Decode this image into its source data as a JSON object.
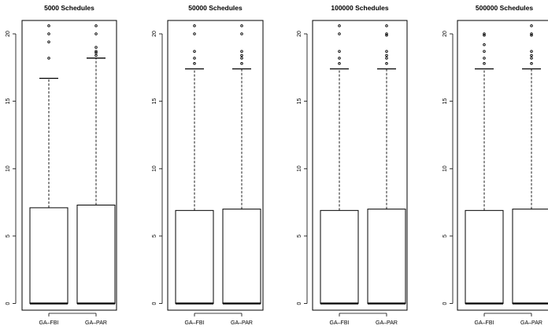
{
  "chart_data": [
    {
      "type": "boxplot",
      "title": "5000 Schedules",
      "categories": [
        "GA–FBI",
        "GA–PAR"
      ],
      "ylim": [
        0,
        20.6
      ],
      "yticks": [
        0,
        5,
        10,
        15,
        20
      ],
      "ytick_labels": [
        "0",
        "5",
        "10",
        "15",
        "20"
      ],
      "boxes": [
        {
          "min": 0,
          "q1": 0,
          "median": 0,
          "q3": 7.1,
          "whisker_high": 16.7,
          "outliers": [
            18.2,
            19.4,
            20.0,
            20.6
          ]
        },
        {
          "min": 0,
          "q1": 0,
          "median": 0,
          "q3": 7.3,
          "whisker_high": 18.2,
          "outliers": [
            18.4,
            18.6,
            18.7,
            19.0,
            20.0,
            20.6
          ]
        }
      ]
    },
    {
      "type": "boxplot",
      "title": "50000 Schedules",
      "categories": [
        "GA–FBI",
        "GA–PAR"
      ],
      "ylim": [
        0,
        20.6
      ],
      "yticks": [
        0,
        5,
        10,
        15,
        20
      ],
      "ytick_labels": [
        "0",
        "5",
        "10",
        "15",
        "20"
      ],
      "boxes": [
        {
          "min": 0,
          "q1": 0,
          "median": 0,
          "q3": 6.9,
          "whisker_high": 17.4,
          "outliers": [
            17.8,
            18.2,
            18.7,
            20.0,
            20.6
          ]
        },
        {
          "min": 0,
          "q1": 0,
          "median": 0,
          "q3": 7.0,
          "whisker_high": 17.4,
          "outliers": [
            17.8,
            18.2,
            18.4,
            18.7,
            20.0,
            20.6
          ]
        }
      ]
    },
    {
      "type": "boxplot",
      "title": "100000 Schedules",
      "categories": [
        "GA–FBI",
        "GA–PAR"
      ],
      "ylim": [
        0,
        20.6
      ],
      "yticks": [
        0,
        5,
        10,
        15,
        20
      ],
      "ytick_labels": [
        "0",
        "5",
        "10",
        "15",
        "20"
      ],
      "boxes": [
        {
          "min": 0,
          "q1": 0,
          "median": 0,
          "q3": 6.9,
          "whisker_high": 17.4,
          "outliers": [
            17.8,
            18.2,
            18.7,
            20.0,
            20.6
          ]
        },
        {
          "min": 0,
          "q1": 0,
          "median": 0,
          "q3": 7.0,
          "whisker_high": 17.4,
          "outliers": [
            17.8,
            18.2,
            18.4,
            18.7,
            19.9,
            20.0,
            20.6
          ]
        }
      ]
    },
    {
      "type": "boxplot",
      "title": "500000 Schedules",
      "categories": [
        "GA–FBI",
        "GA–PAR"
      ],
      "ylim": [
        0,
        20.6
      ],
      "yticks": [
        0,
        5,
        10,
        15,
        20
      ],
      "ytick_labels": [
        "0",
        "5",
        "10",
        "15",
        "20"
      ],
      "boxes": [
        {
          "min": 0,
          "q1": 0,
          "median": 0,
          "q3": 6.9,
          "whisker_high": 17.4,
          "outliers": [
            17.8,
            18.2,
            18.7,
            19.2,
            19.9,
            20.0
          ]
        },
        {
          "min": 0,
          "q1": 0,
          "median": 0,
          "q3": 7.0,
          "whisker_high": 17.4,
          "outliers": [
            17.8,
            18.2,
            18.4,
            18.7,
            19.9,
            20.0,
            20.6
          ]
        }
      ]
    }
  ]
}
